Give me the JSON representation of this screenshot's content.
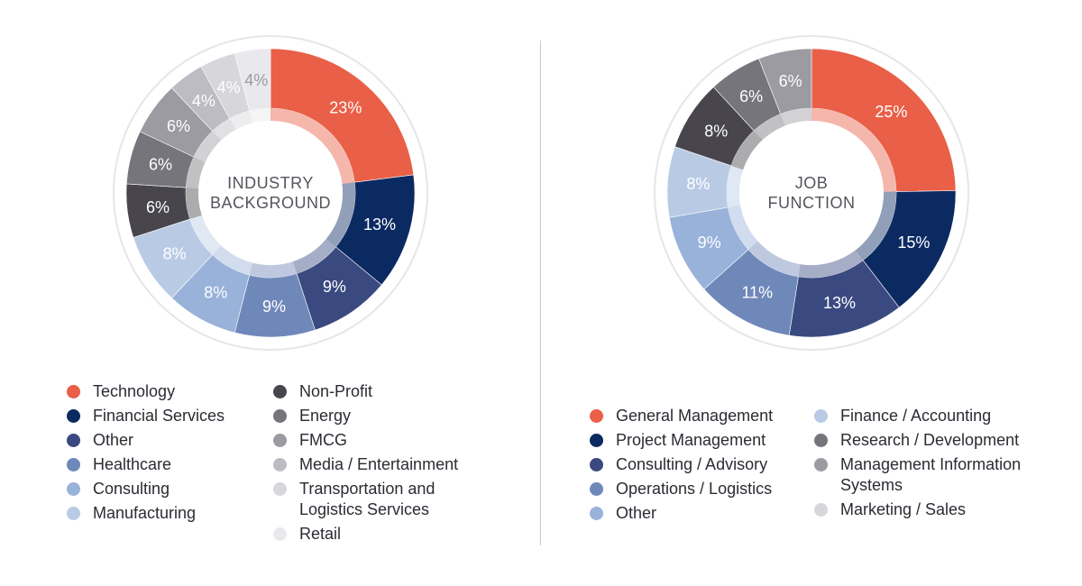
{
  "chart_data": [
    {
      "type": "pie",
      "title": "INDUSTRY BACKGROUND",
      "title_lines": [
        "INDUSTRY",
        "BACKGROUND"
      ],
      "categories": [
        "Technology",
        "Financial Services",
        "Other",
        "Healthcare",
        "Consulting",
        "Manufacturing",
        "Non-Profit",
        "Energy",
        "FMCG",
        "Media / Entertainment",
        "Transportation and Logistics Services",
        "Retail"
      ],
      "legend_lines": [
        [
          "Technology"
        ],
        [
          "Financial Services"
        ],
        [
          "Other"
        ],
        [
          "Healthcare"
        ],
        [
          "Consulting"
        ],
        [
          "Manufacturing"
        ],
        [
          "Non-Profit"
        ],
        [
          "Energy"
        ],
        [
          "FMCG"
        ],
        [
          "Media / Entertainment"
        ],
        [
          "Transportation and",
          "Logistics Services"
        ],
        [
          "Retail"
        ]
      ],
      "values": [
        23,
        13,
        9,
        9,
        8,
        8,
        6,
        6,
        6,
        4,
        4,
        4
      ],
      "labels": [
        "23%",
        "13%",
        "9%",
        "9%",
        "8%",
        "8%",
        "6%",
        "6%",
        "6%",
        "4%",
        "4%",
        "4%"
      ],
      "colors": [
        "#e95f47",
        "#0c2a62",
        "#3a4a80",
        "#6f88ba",
        "#98b2d9",
        "#b9cbe4",
        "#48464c",
        "#76757c",
        "#9c9ba2",
        "#bdbcc2",
        "#d7d6db",
        "#e9e8ec"
      ],
      "label_colors": [
        "#ffffff",
        "#ffffff",
        "#ffffff",
        "#ffffff",
        "#ffffff",
        "#ffffff",
        "#ffffff",
        "#ffffff",
        "#ffffff",
        "#ffffff",
        "#ffffff",
        "#9c9ba2"
      ],
      "legend_columns": [
        [
          0,
          1,
          2,
          3,
          4,
          5
        ],
        [
          6,
          7,
          8,
          9,
          10,
          11
        ]
      ]
    },
    {
      "type": "pie",
      "title": "JOB FUNCTION",
      "title_lines": [
        "JOB",
        "FUNCTION"
      ],
      "categories": [
        "General Management",
        "Project Management",
        "Consulting / Advisory",
        "Operations / Logistics",
        "Other",
        "Finance / Accounting",
        "Research / Development",
        "Management Information Systems",
        "Marketing / Sales"
      ],
      "legend_lines": [
        [
          "General Management"
        ],
        [
          "Project Management"
        ],
        [
          "Consulting / Advisory"
        ],
        [
          "Operations / Logistics"
        ],
        [
          "Other"
        ],
        [
          "Finance / Accounting"
        ],
        [
          "Research / Development"
        ],
        [
          "Management Information",
          "Systems"
        ],
        [
          "Marketing / Sales"
        ]
      ],
      "values": [
        25,
        15,
        13,
        11,
        9,
        8,
        8,
        6,
        6
      ],
      "labels": [
        "25%",
        "15%",
        "13%",
        "11%",
        "9%",
        "8%",
        "8%",
        "6%",
        "6%"
      ],
      "colors": [
        "#e95f47",
        "#0c2a62",
        "#3a4a80",
        "#6f88ba",
        "#98b2d9",
        "#b9cbe4",
        "#48464c",
        "#76757c",
        "#9c9ba2"
      ],
      "legend_colors": [
        "#e95f47",
        "#0c2a62",
        "#3a4a80",
        "#6f88ba",
        "#98b2d9",
        "#b9cbe4",
        "#76757c",
        "#9c9ba2",
        "#d7d6db"
      ],
      "label_colors": [
        "#ffffff",
        "#ffffff",
        "#ffffff",
        "#ffffff",
        "#ffffff",
        "#ffffff",
        "#ffffff",
        "#ffffff",
        "#ffffff"
      ],
      "legend_columns": [
        [
          0,
          1,
          2,
          3,
          4
        ],
        [
          5,
          6,
          7,
          8
        ]
      ]
    }
  ]
}
